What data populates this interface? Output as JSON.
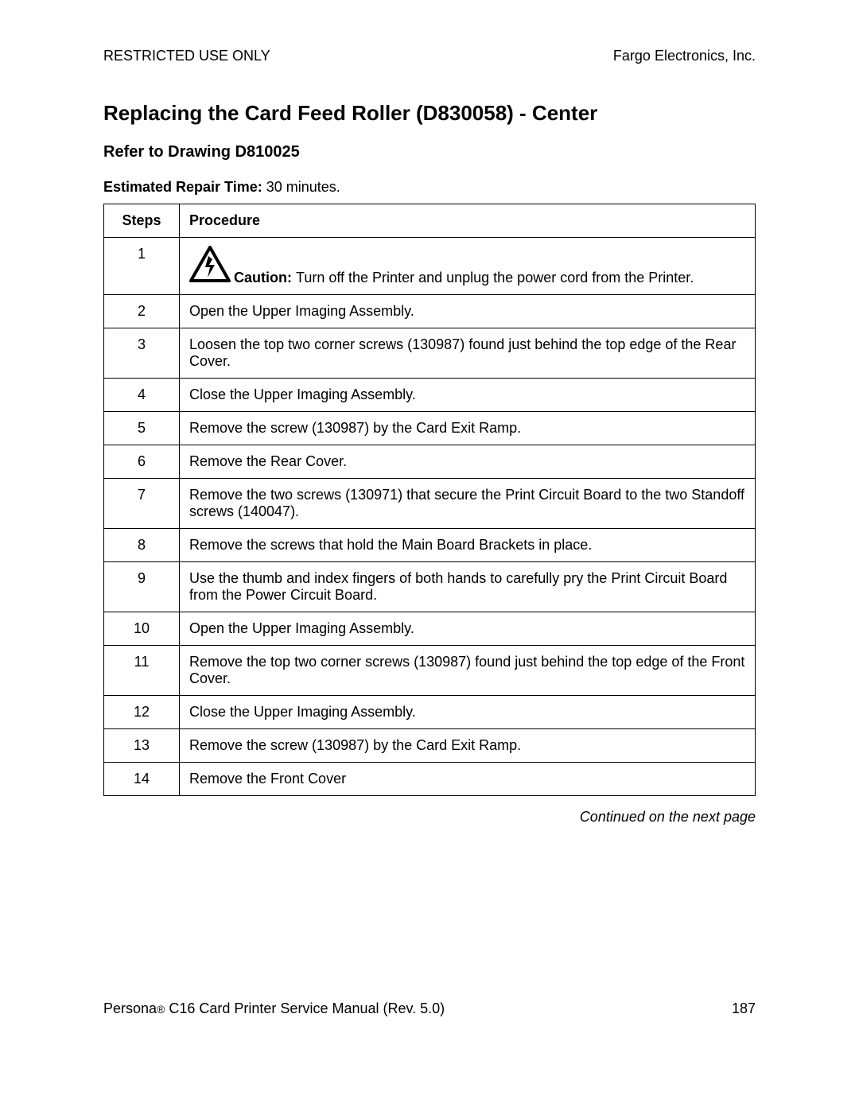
{
  "header": {
    "left": "RESTRICTED USE ONLY",
    "right": "Fargo Electronics, Inc."
  },
  "title": "Replacing the Card Feed Roller (D830058) - Center",
  "subtitle": "Refer to Drawing D810025",
  "estimated": {
    "label": "Estimated Repair Time:  ",
    "value": "30 minutes."
  },
  "table": {
    "col_steps": "Steps",
    "col_proc": "Procedure",
    "caution_label": "Caution:  ",
    "rows": [
      {
        "step": "1",
        "caution": true,
        "text": "Turn off the Printer and unplug the power cord from the Printer."
      },
      {
        "step": "2",
        "text": "Open the Upper Imaging Assembly."
      },
      {
        "step": "3",
        "text": "Loosen the top two corner screws (130987) found just behind the top edge of the Rear Cover."
      },
      {
        "step": "4",
        "text": "Close the Upper Imaging Assembly."
      },
      {
        "step": "5",
        "text": "Remove the screw (130987) by the Card Exit Ramp."
      },
      {
        "step": "6",
        "text": "Remove the Rear Cover."
      },
      {
        "step": "7",
        "text": "Remove the two screws (130971) that secure the Print Circuit Board to the two Standoff screws (140047)."
      },
      {
        "step": "8",
        "text": "Remove the screws that hold the Main Board Brackets in place."
      },
      {
        "step": "9",
        "text": "Use the thumb and index fingers of both hands to carefully pry the Print Circuit Board from the Power Circuit Board."
      },
      {
        "step": "10",
        "text": "Open the Upper Imaging Assembly."
      },
      {
        "step": "11",
        "text": "Remove the top two corner screws (130987) found just behind the top edge of the Front Cover."
      },
      {
        "step": "12",
        "text": "Close the Upper Imaging Assembly."
      },
      {
        "step": "13",
        "text": "Remove the screw (130987) by the Card Exit Ramp."
      },
      {
        "step": "14",
        "text": "Remove the Front Cover"
      }
    ]
  },
  "continued": "Continued on the next page",
  "footer": {
    "left_pre": "Persona",
    "left_post": " C16 Card Printer Service Manual (Rev. 5.0)",
    "page_no": "187"
  }
}
